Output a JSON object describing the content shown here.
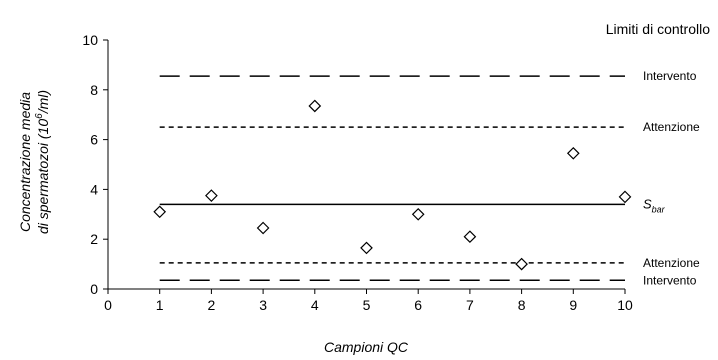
{
  "chart_data": {
    "type": "scatter",
    "title": "",
    "xlabel": "Campioni QC",
    "ylabel_line1": "Concentrazione media",
    "ylabel_line2_prefix": "di spermatozoi (10",
    "ylabel_line2_exp": "6",
    "ylabel_line2_suffix": "/ml)",
    "legend_title": "Limiti di controllo",
    "xlim": [
      0,
      10
    ],
    "ylim": [
      0,
      10
    ],
    "x_ticks": [
      0,
      1,
      2,
      3,
      4,
      5,
      6,
      7,
      8,
      9,
      10
    ],
    "y_ticks": [
      0,
      2,
      4,
      6,
      8,
      10
    ],
    "marker": "diamond-open",
    "x": [
      1,
      2,
      3,
      4,
      5,
      6,
      7,
      8,
      9,
      10
    ],
    "y": [
      3.1,
      3.75,
      2.45,
      7.35,
      1.65,
      3.0,
      2.1,
      1.0,
      5.45,
      3.7
    ],
    "control_lines": [
      {
        "label": "Intervento",
        "y": 8.55,
        "style": "long-dash",
        "x_range": [
          1,
          10
        ]
      },
      {
        "label": "Attenzione",
        "y": 6.5,
        "style": "short-dash",
        "x_range": [
          1,
          10
        ]
      },
      {
        "label_main": "S",
        "label_sub": "bar",
        "y": 3.4,
        "style": "solid",
        "x_range": [
          1,
          10
        ]
      },
      {
        "label": "Attenzione",
        "y": 1.05,
        "style": "short-dash",
        "x_range": [
          1,
          10
        ]
      },
      {
        "label": "Intervento",
        "y": 0.35,
        "style": "long-dash",
        "x_range": [
          1,
          10
        ]
      }
    ],
    "colors": {
      "ink": "#000000",
      "background": "#ffffff"
    }
  }
}
